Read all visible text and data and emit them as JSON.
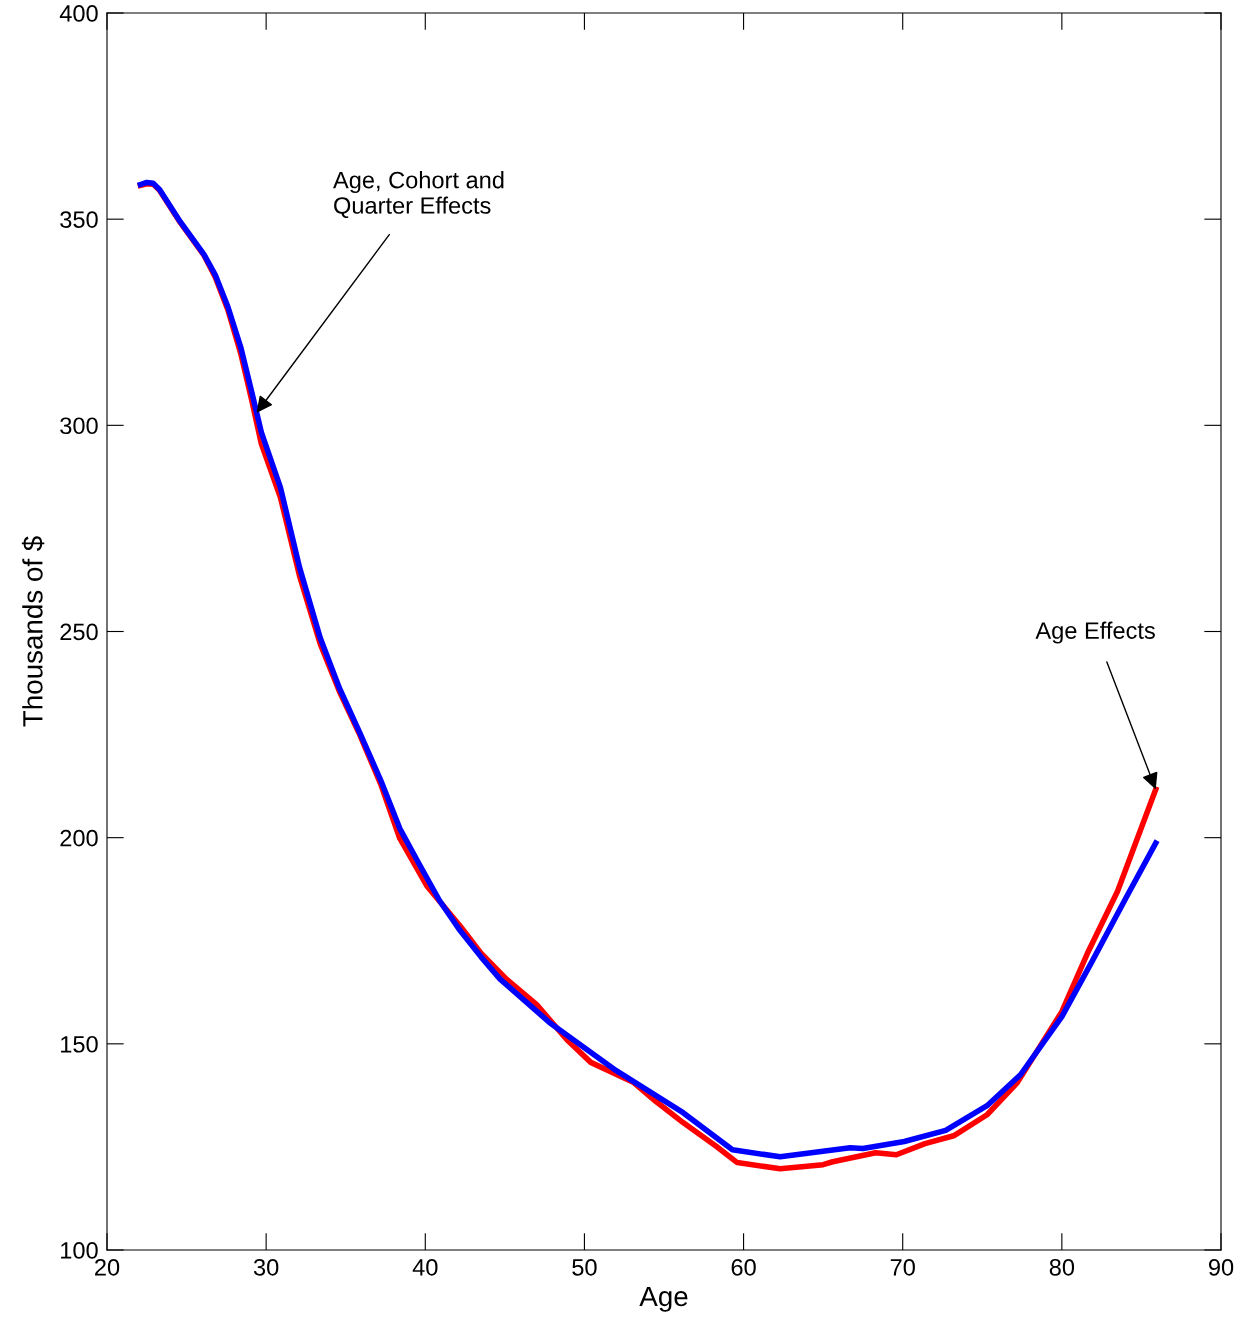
{
  "chart_data": {
    "type": "line",
    "xlabel": "Age",
    "ylabel": "Thousands of $",
    "xlim": [
      20,
      90
    ],
    "ylim": [
      100,
      400
    ],
    "xticks": [
      20,
      30,
      40,
      50,
      60,
      70,
      80,
      90
    ],
    "yticks": [
      100,
      150,
      200,
      250,
      300,
      350,
      400
    ],
    "grid": false,
    "legend": false,
    "marker": "none",
    "line_style": "solid",
    "series": [
      {
        "color": "#ff0000",
        "x": [
          22.1,
          22.5,
          22.9,
          23.3,
          24.6,
          26.1,
          26.8,
          27.6,
          28.4,
          29.1,
          29.7,
          30.9,
          32.1,
          33.4,
          34.6,
          35.9,
          37.2,
          38.4,
          40.1,
          42.2,
          43.5,
          45.1,
          47.0,
          48.9,
          50.4,
          53.1,
          54.5,
          56.2,
          58.3,
          59.6,
          62.3,
          65.0,
          65.6,
          68.3,
          69.6,
          71.4,
          73.2,
          75.3,
          77.2,
          80.0,
          81.6,
          83.5,
          84.5,
          85.9
        ],
        "values": [
          358.2,
          358.6,
          358.5,
          357.0,
          349.2,
          341.2,
          336.0,
          328.0,
          317.5,
          306.0,
          295.5,
          282.5,
          263.5,
          247.0,
          235.5,
          224.8,
          213.0,
          199.8,
          188.3,
          178.5,
          172.0,
          165.7,
          159.5,
          151.0,
          145.5,
          140.6,
          136.0,
          130.9,
          125.1,
          121.2,
          119.7,
          120.7,
          121.4,
          123.6,
          123.1,
          125.8,
          127.7,
          132.8,
          140.6,
          157.8,
          171.9,
          187.0,
          197.3,
          211.7
        ]
      },
      {
        "color": "#0000ff",
        "x": [
          22.1,
          22.5,
          22.9,
          23.3,
          24.6,
          26.1,
          26.8,
          27.6,
          28.4,
          29.1,
          29.7,
          30.9,
          32.1,
          33.4,
          34.6,
          35.9,
          37.2,
          38.4,
          39.7,
          40.9,
          42.2,
          43.5,
          44.7,
          47.8,
          52.0,
          56.2,
          59.3,
          62.3,
          66.7,
          67.5,
          70.1,
          72.7,
          75.3,
          77.4,
          80.0,
          81.9,
          84.0,
          85.9
        ],
        "values": [
          358.4,
          358.9,
          358.7,
          357.2,
          349.4,
          341.4,
          336.5,
          328.7,
          319.0,
          308.0,
          298.3,
          284.9,
          265.5,
          248.4,
          236.3,
          225.3,
          213.9,
          202.2,
          193.0,
          184.7,
          177.4,
          171.1,
          165.7,
          155.2,
          143.5,
          133.3,
          124.3,
          122.6,
          124.8,
          124.6,
          126.3,
          129.0,
          135.0,
          142.5,
          156.6,
          170.0,
          185.2,
          198.7
        ]
      }
    ],
    "annotations": [
      {
        "text": "Age, Cohort and\nQuarter Effects",
        "x": 29.4,
        "y": 303
      },
      {
        "text": "Age Effects",
        "x": 85.9,
        "y": 211.7
      }
    ]
  }
}
